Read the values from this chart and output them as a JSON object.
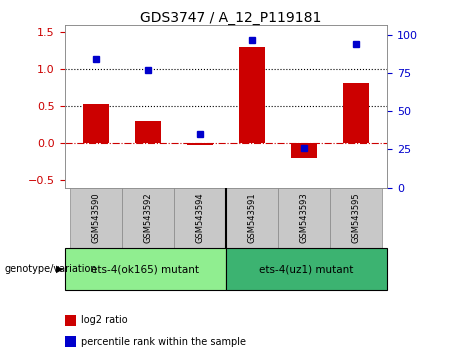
{
  "title": "GDS3747 / A_12_P119181",
  "categories": [
    "GSM543590",
    "GSM543592",
    "GSM543594",
    "GSM543591",
    "GSM543593",
    "GSM543595"
  ],
  "log2_ratio": [
    0.53,
    0.3,
    -0.02,
    1.3,
    -0.2,
    0.82
  ],
  "percentile_rank": [
    84,
    77,
    35,
    97,
    26,
    94
  ],
  "bar_color": "#cc0000",
  "dot_color": "#0000cc",
  "ylim_left": [
    -0.6,
    1.6
  ],
  "ylim_right": [
    0,
    106.67
  ],
  "yticks_left": [
    -0.5,
    0.0,
    0.5,
    1.0,
    1.5
  ],
  "yticks_right": [
    0,
    25,
    50,
    75,
    100
  ],
  "hlines": [
    0.0,
    0.5,
    1.0
  ],
  "hline_styles": [
    "dashdot",
    "dotted",
    "dotted"
  ],
  "hline_colors": [
    "#cc0000",
    "black",
    "black"
  ],
  "group1_label": "ets-4(ok165) mutant",
  "group2_label": "ets-4(uz1) mutant",
  "group1_color": "#90ee90",
  "group2_color": "#3cb371",
  "legend_label_bar": "log2 ratio",
  "legend_label_dot": "percentile rank within the sample",
  "genotype_label": "genotype/variation",
  "separator_x": 2.5,
  "tick_label_color_left": "#cc0000",
  "tick_label_color_right": "#0000cc",
  "background_xtick": "#c8c8c8",
  "xlim": [
    -0.6,
    5.6
  ]
}
